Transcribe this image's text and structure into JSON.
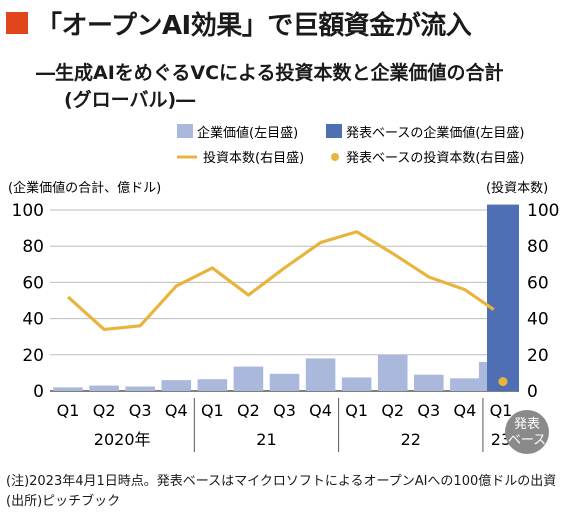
{
  "header": {
    "title": "「オープンAI効果」で巨額資金が流入",
    "subtitle_line1": "―生成AIをめぐるVCによる投資本数と企業価値の合計",
    "subtitle_line2": "(グローバル)―"
  },
  "legend": {
    "bar_main": "企業価値(左目盛)",
    "bar_announced": "発表ベースの企業価値(左目盛)",
    "line_main": "投資本数(右目盛)",
    "dot_announced": "発表ベースの投資本数(右目盛)"
  },
  "axes": {
    "left_label": "(企業価値の合計、億ドル)",
    "right_label": "(投資本数)"
  },
  "annotation": {
    "badge_line1": "発表",
    "badge_line2": "ベース"
  },
  "notes": {
    "note": "(注)2023年4月1日時点。発表ベースはマイクロソフトによるオープンAIへの100億ドルの出資",
    "source": "(出所)ピッチブック"
  },
  "colors": {
    "accent_square": "#e0451c",
    "bar_main": "#aab8dc",
    "bar_announced": "#4f6fb4",
    "line_main": "#e9b43e",
    "dot_announced": "#e9b43e",
    "badge": "#8a8a8a"
  },
  "chart_data": {
    "type": "bar",
    "categories": [
      "Q1",
      "Q2",
      "Q3",
      "Q4",
      "Q1",
      "Q2",
      "Q3",
      "Q4",
      "Q1",
      "Q2",
      "Q3",
      "Q4",
      "Q1"
    ],
    "year_groups": [
      {
        "label": "2020年",
        "start": 0,
        "end": 3
      },
      {
        "label": "21",
        "start": 4,
        "end": 7
      },
      {
        "label": "22",
        "start": 8,
        "end": 11
      },
      {
        "label": "23",
        "start": 12,
        "end": 12
      }
    ],
    "series": [
      {
        "name": "企業価値(左目盛)",
        "kind": "bar",
        "axis": "left",
        "values": [
          2,
          3,
          2.5,
          6,
          6.5,
          13.5,
          9.5,
          18,
          7.5,
          20,
          9,
          7,
          16
        ]
      },
      {
        "name": "発表ベースの企業価値(左目盛)",
        "kind": "bar",
        "axis": "left",
        "values": [
          null,
          null,
          null,
          null,
          null,
          null,
          null,
          null,
          null,
          null,
          null,
          null,
          103
        ]
      },
      {
        "name": "投資本数(右目盛)",
        "kind": "line",
        "axis": "right",
        "values": [
          52,
          34,
          36,
          58,
          68,
          53,
          68,
          82,
          88,
          76,
          63,
          56,
          45
        ]
      },
      {
        "name": "発表ベースの投資本数(右目盛)",
        "kind": "dot",
        "axis": "right",
        "values": [
          null,
          null,
          null,
          null,
          null,
          null,
          null,
          null,
          null,
          null,
          null,
          null,
          3
        ]
      }
    ],
    "left_ticks": [
      0,
      20,
      40,
      60,
      80,
      100
    ],
    "right_ticks": [
      0,
      20,
      40,
      60,
      80,
      100
    ],
    "ylim": [
      0,
      105
    ]
  }
}
